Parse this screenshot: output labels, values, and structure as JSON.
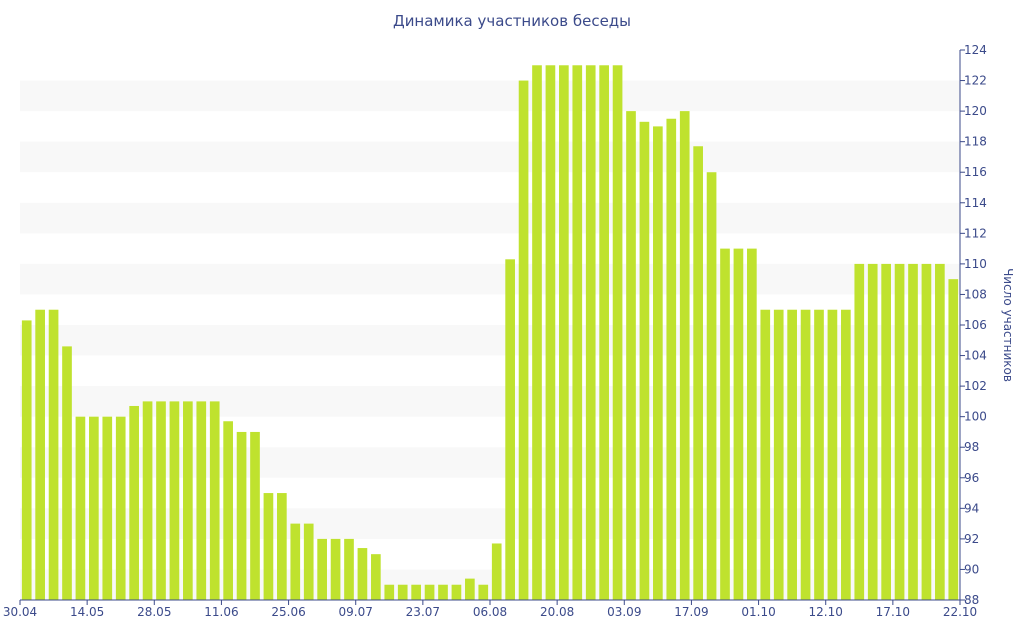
{
  "chart_data": {
    "type": "bar",
    "title": "Динамика участников беседы",
    "xlabel": "",
    "ylabel": "Число участников",
    "ylim": [
      88,
      124
    ],
    "yticks": [
      88,
      90,
      92,
      94,
      96,
      98,
      100,
      102,
      104,
      106,
      108,
      110,
      112,
      114,
      116,
      118,
      120,
      122,
      124
    ],
    "y_axis_position": "right",
    "grid": "alternating horizontal bands",
    "bar_color": "#bfe22e",
    "band_color": "#f8f8f8",
    "text_color": "#3b4a8a",
    "xtick_labels": [
      "30.04",
      "14.05",
      "28.05",
      "11.06",
      "25.06",
      "09.07",
      "23.07",
      "06.08",
      "20.08",
      "03.09",
      "17.09",
      "01.10",
      "12.10",
      "17.10",
      "22.10"
    ],
    "values": [
      106.3,
      107,
      107,
      104.6,
      100,
      100,
      100,
      100,
      100.7,
      101,
      101,
      101,
      101,
      101,
      101,
      99.7,
      99,
      99,
      95,
      95,
      93,
      93,
      92,
      92,
      92,
      91.4,
      91,
      89,
      89,
      89,
      89,
      89,
      89,
      89.4,
      89,
      91.7,
      110.3,
      122,
      123,
      123,
      123,
      123,
      123,
      123,
      123,
      120,
      119.3,
      119,
      119.5,
      120,
      117.7,
      116,
      111,
      111,
      111,
      107,
      107,
      107,
      107,
      107,
      107,
      107,
      110,
      110,
      110,
      110,
      110,
      110,
      110,
      109
    ]
  }
}
